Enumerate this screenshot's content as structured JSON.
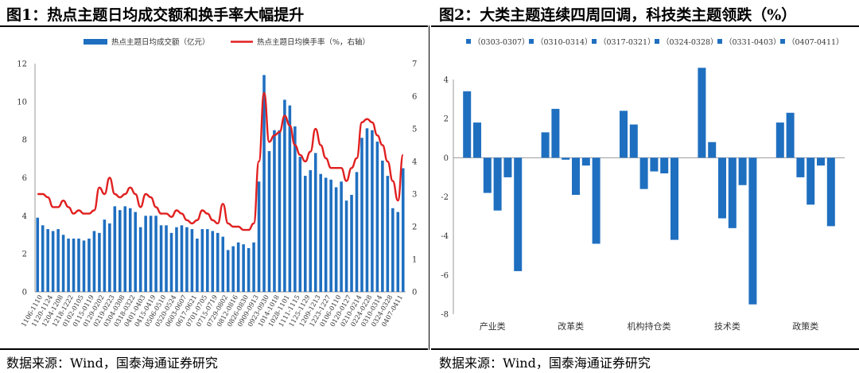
{
  "figures": [
    {
      "title": "图1：热点主题日均成交额和换手率大幅提升",
      "source": "数据来源：Wind，国泰海通证券研究"
    },
    {
      "title": "图2：大类主题连续四周回调，科技类主题领跌（%）",
      "source": "数据来源：Wind，国泰海通证券研究"
    }
  ],
  "chart_data": [
    {
      "type": "bar",
      "title": "",
      "categories": [
        "1106-1110",
        "1120-1124",
        "1204-1208",
        "1218-1222",
        "0102-0105",
        "0115-0119",
        "0129-0202",
        "0219-0223",
        "0304-0308",
        "0318-0322",
        "0401-0403",
        "0415-0419",
        "0506-0510",
        "0520-0524",
        "0603-0607",
        "0617-0621",
        "0701-0705",
        "0715-0719",
        "0729-0802",
        "0812-0816",
        "0826-0830",
        "0909-0913",
        "0923-0930",
        "1014-1018",
        "1028-1101",
        "1111-1115",
        "1125-1129",
        "1209-1213",
        "1223-1227",
        "0106-0110",
        "0120-0127",
        "0210-0214",
        "0224-0228",
        "0310-0314",
        "0324-0328",
        "0407-0411"
      ],
      "bar_series": {
        "name": "热点主题日均成交额（亿元）",
        "color": "#1f6fc0",
        "axis": "left",
        "values": [
          3.9,
          3.5,
          3.3,
          3.2,
          3.3,
          3.0,
          2.8,
          2.8,
          2.8,
          2.7,
          2.8,
          3.2,
          3.1,
          3.8,
          3.6,
          4.5,
          4.3,
          4.5,
          4.4,
          4.2,
          3.4,
          4.0,
          4.0,
          4.0,
          3.5,
          3.5,
          3.1,
          3.4,
          3.5,
          3.4,
          3.3,
          2.8,
          3.3,
          3.3,
          3.2,
          3.1,
          2.9,
          2.2,
          2.4,
          2.6,
          2.5,
          2.3,
          2.6,
          5.8,
          11.4,
          7.4,
          8.5,
          8.5,
          10.1,
          9.8,
          8.7,
          7.1,
          6.1,
          6.4,
          7.3,
          6.2,
          6.0,
          5.9,
          5.5,
          5.8,
          4.8,
          5.1,
          6.3,
          8.1,
          8.6,
          8.5,
          7.9,
          6.9,
          6.1,
          4.4,
          4.2,
          6.5
        ]
      },
      "line_series": {
        "name": "热点主题日均换手率（%，右轴）",
        "color": "#e02020",
        "axis": "right",
        "values": [
          3.0,
          3.0,
          2.9,
          2.6,
          2.6,
          2.8,
          2.6,
          2.4,
          2.5,
          2.4,
          2.4,
          2.5,
          3.2,
          3.0,
          3.5,
          3.0,
          2.9,
          3.0,
          3.2,
          3.0,
          2.6,
          3.0,
          2.9,
          2.6,
          2.4,
          2.4,
          2.3,
          2.5,
          2.4,
          2.2,
          2.1,
          2.2,
          2.5,
          2.4,
          2.2,
          2.1,
          2.7,
          2.1,
          2.0,
          2.0,
          1.9,
          1.9,
          2.1,
          4.0,
          6.1,
          4.6,
          4.8,
          4.9,
          5.4,
          5.1,
          4.5,
          4.2,
          4.0,
          4.3,
          5.0,
          4.5,
          4.1,
          3.8,
          3.8,
          3.8,
          3.4,
          3.8,
          4.1,
          5.2,
          5.3,
          5.2,
          4.8,
          4.5,
          4.0,
          3.4,
          2.8,
          4.2
        ]
      },
      "y_left": {
        "min": 0,
        "max": 12,
        "ticks": [
          0,
          2,
          4,
          6,
          8,
          10,
          12
        ]
      },
      "y_right": {
        "min": 0,
        "max": 7,
        "ticks": [
          0,
          1,
          2,
          3,
          4,
          5,
          6,
          7
        ]
      },
      "grid": false,
      "legend": "top"
    },
    {
      "type": "bar",
      "title": "",
      "categories": [
        "产业类",
        "改革类",
        "机构持仓类",
        "技术类",
        "政策类"
      ],
      "series": [
        {
          "name": "（0303-0307）",
          "values": [
            3.4,
            1.3,
            2.4,
            4.6,
            1.8
          ]
        },
        {
          "name": "（0310-0314）",
          "values": [
            1.8,
            2.5,
            1.7,
            0.8,
            2.3
          ]
        },
        {
          "name": "（0317-0321）",
          "values": [
            -1.8,
            -0.1,
            -1.6,
            -3.1,
            -1.0
          ]
        },
        {
          "name": "（0324-0328）",
          "values": [
            -2.7,
            -1.9,
            -0.7,
            -3.6,
            -2.4
          ]
        },
        {
          "name": "（0331-0403）",
          "values": [
            -1.0,
            -0.4,
            -0.8,
            -1.4,
            -0.4
          ]
        },
        {
          "name": "（0407-0411）",
          "values": [
            -5.8,
            -4.4,
            -4.2,
            -7.5,
            -3.5
          ]
        }
      ],
      "color": "#1f6fc0",
      "ylim": [
        -8,
        4
      ],
      "y_ticks": [
        -8,
        -6,
        -4,
        -2,
        0,
        2,
        4
      ],
      "grid": false,
      "legend": "top"
    }
  ]
}
